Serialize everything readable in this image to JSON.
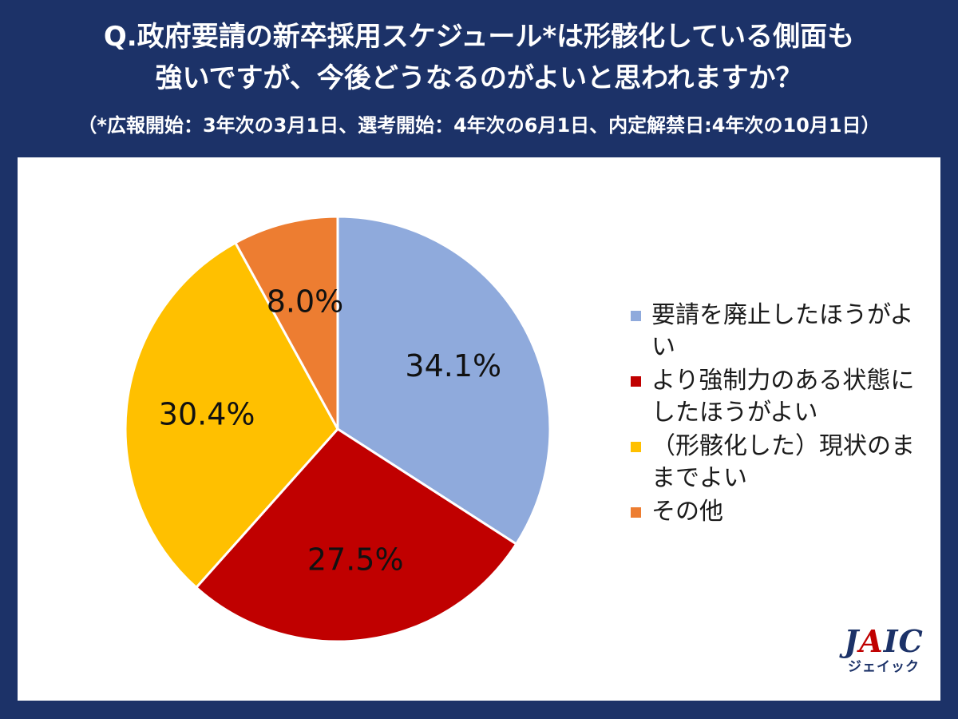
{
  "header": {
    "question_line1": "Q.政府要請の新卒採用スケジュール*は形骸化している側面も",
    "question_line2": "強いですが、今後どうなるのがよいと思われますか？",
    "note": "（*広報開始：3年次の3月1日、選考開始：4年次の6月1日、内定解禁日:4年次の10月1日）"
  },
  "chart_data": {
    "type": "pie",
    "title": "",
    "categories": [
      "要請を廃止したほうがよい",
      "より強制力のある状態にしたほうがよい",
      "（形骸化した）現状のままでよい",
      "その他"
    ],
    "values": [
      34.1,
      27.5,
      30.4,
      8.0
    ],
    "labels": [
      "34.1%",
      "27.5%",
      "30.4%",
      "8.0%"
    ],
    "colors": [
      "#8faadc",
      "#c00000",
      "#ffc000",
      "#ed7d31"
    ],
    "start_angle": "12 o'clock",
    "direction": "clockwise",
    "legend_position": "right"
  },
  "logo": {
    "text_main_prefix": "J",
    "text_main_a": "A",
    "text_main_suffix": "IC",
    "text_sub": "ジェイック"
  },
  "colors": {
    "background": "#1c3268",
    "panel": "#ffffff"
  }
}
